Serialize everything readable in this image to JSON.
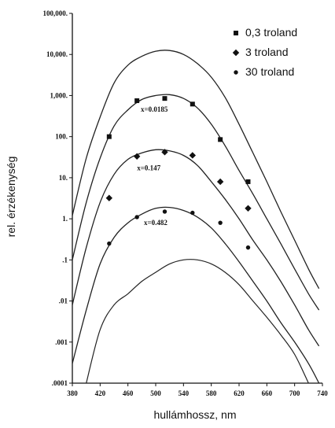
{
  "chart_data": {
    "type": "line",
    "title": "",
    "xlabel": "hullámhossz, nm",
    "ylabel": "rel. érzékenység",
    "xlim": [
      380,
      740
    ],
    "ylim": [
      0.0001,
      100000
    ],
    "yscale": "log",
    "grid": false,
    "legend_position": "top-right",
    "x_ticks": [
      380,
      420,
      460,
      500,
      540,
      580,
      620,
      660,
      700,
      740
    ],
    "x_tick_labels": [
      "380",
      "420",
      "460",
      "500",
      "540",
      "580",
      "620",
      "660",
      "700",
      "740"
    ],
    "y_ticks": [
      0.0001,
      0.001,
      0.01,
      0.1,
      1,
      10,
      100,
      1000,
      10000,
      100000
    ],
    "y_tick_labels": [
      ".0001",
      ".001",
      ".01",
      ".1",
      "1.",
      "10.",
      "100.",
      "1,000.",
      "10,000.",
      "100,000."
    ],
    "legend": [
      {
        "label": "0,3 troland",
        "marker": "square"
      },
      {
        "label": "3 troland",
        "marker": "diamond"
      },
      {
        "label": "30 troland",
        "marker": "circle"
      }
    ],
    "curves": [
      {
        "x": [
          380,
          400,
          420,
          440,
          460,
          480,
          500,
          520,
          540,
          560,
          580,
          600,
          620,
          640,
          660,
          680,
          700,
          720,
          735
        ],
        "y": [
          1.2,
          30,
          300,
          2000,
          5500,
          9000,
          12000,
          12500,
          10000,
          6000,
          2800,
          900,
          200,
          40,
          8,
          1.5,
          0.3,
          0.06,
          0.02
        ]
      },
      {
        "x": [
          380,
          400,
          420,
          440,
          460,
          480,
          500,
          520,
          540,
          560,
          580,
          600,
          620,
          640,
          660,
          680,
          700,
          720,
          735
        ],
        "y": [
          0.1,
          2.5,
          30,
          180,
          450,
          800,
          1000,
          1050,
          850,
          500,
          200,
          60,
          15,
          4,
          1,
          0.25,
          0.06,
          0.015,
          0.006
        ]
      },
      {
        "x": [
          380,
          400,
          420,
          440,
          460,
          480,
          500,
          520,
          540,
          560,
          580,
          600,
          620,
          640,
          660,
          680,
          700,
          720,
          735
        ],
        "y": [
          0.008,
          0.2,
          2.5,
          12,
          28,
          40,
          48,
          45,
          35,
          20,
          8,
          3,
          1,
          0.3,
          0.1,
          0.03,
          0.008,
          0.002,
          0.0008
        ]
      },
      {
        "x": [
          380,
          400,
          420,
          440,
          460,
          480,
          500,
          520,
          540,
          560,
          580,
          600,
          620,
          640,
          660,
          680,
          700,
          720,
          735
        ],
        "y": [
          0.0003,
          0.006,
          0.08,
          0.35,
          0.8,
          1.3,
          1.8,
          1.9,
          1.6,
          1.1,
          0.6,
          0.25,
          0.09,
          0.03,
          0.01,
          0.003,
          0.001,
          0.0003,
          0.0001
        ]
      },
      {
        "x": [
          400,
          420,
          440,
          460,
          480,
          500,
          520,
          540,
          560,
          580,
          600,
          620,
          640,
          660,
          680,
          700,
          720
        ],
        "y": [
          0.0001,
          0.002,
          0.008,
          0.015,
          0.03,
          0.05,
          0.08,
          0.1,
          0.1,
          0.08,
          0.05,
          0.025,
          0.01,
          0.004,
          0.0015,
          0.0005,
          0.0001
        ]
      }
    ],
    "series": [
      {
        "marker": "square",
        "x": [
          433,
          473,
          513,
          553,
          593,
          633
        ],
        "y": [
          100,
          750,
          850,
          620,
          85,
          8
        ]
      },
      {
        "marker": "diamond",
        "x": [
          433,
          473,
          513,
          553,
          593,
          633
        ],
        "y": [
          3.2,
          33,
          42,
          35,
          8,
          1.8
        ]
      },
      {
        "marker": "circle",
        "x": [
          433,
          473,
          513,
          553,
          593,
          633
        ],
        "y": [
          0.25,
          1.1,
          1.5,
          1.4,
          0.8,
          0.2
        ]
      }
    ],
    "annotations": [
      {
        "text": "x=0.0185",
        "x": 498,
        "y": 400
      },
      {
        "text": "x=0.147",
        "x": 490,
        "y": 15
      },
      {
        "text": "x=0.482",
        "x": 500,
        "y": 0.7
      }
    ]
  }
}
